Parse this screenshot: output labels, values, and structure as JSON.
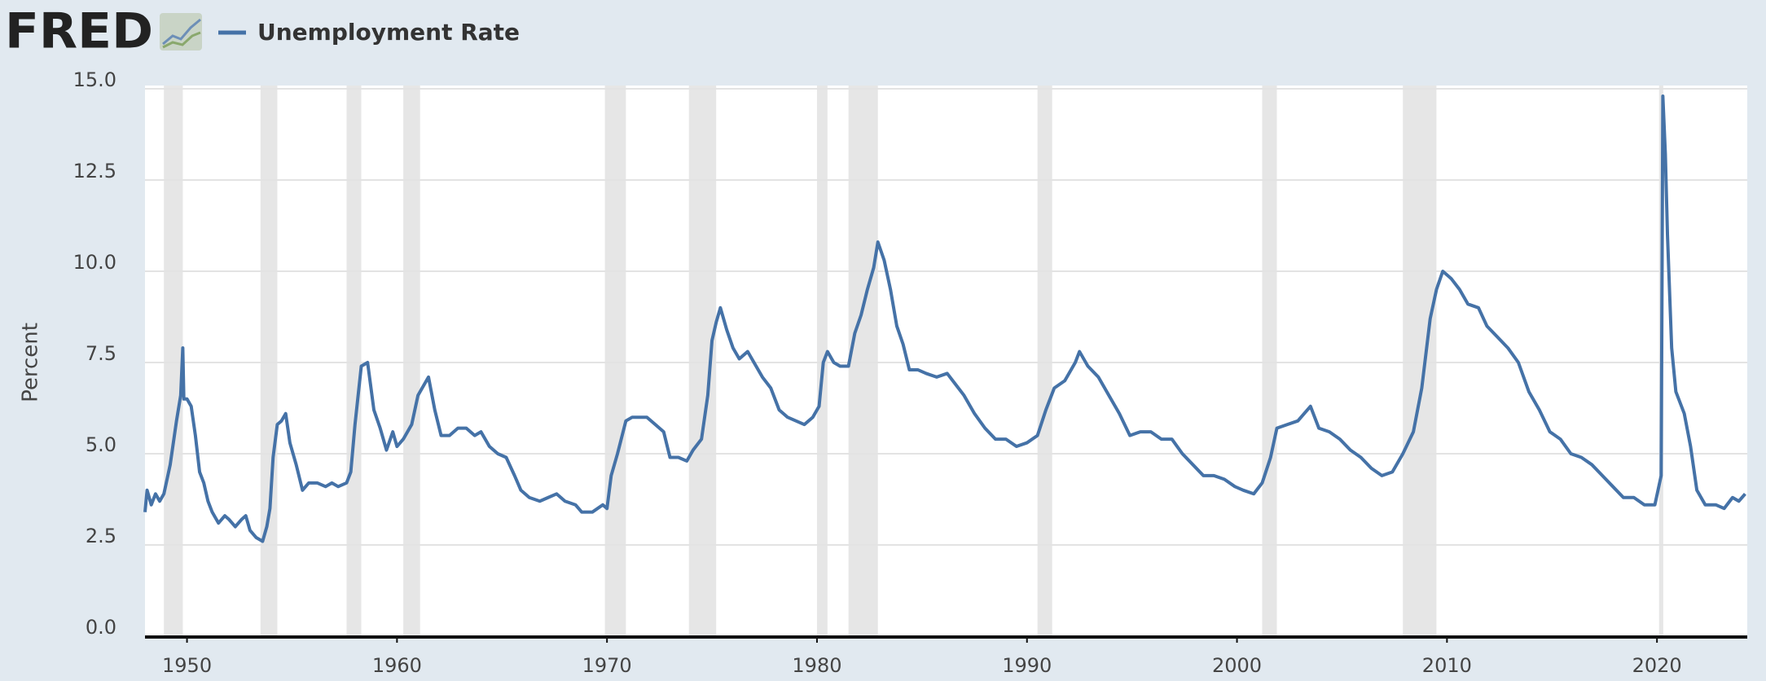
{
  "logo": "FRED",
  "chart_data": {
    "type": "line",
    "ylabel": "Percent",
    "series": [
      {
        "name": "Unemployment Rate",
        "color": "#4572a7",
        "x": [
          1948.0,
          1948.1,
          1948.3,
          1948.5,
          1948.7,
          1948.9,
          1949.2,
          1949.5,
          1949.7,
          1949.8,
          1949.85,
          1950.0,
          1950.2,
          1950.4,
          1950.6,
          1950.8,
          1951.0,
          1951.2,
          1951.5,
          1951.8,
          1952.0,
          1952.3,
          1952.6,
          1952.8,
          1953.0,
          1953.3,
          1953.6,
          1953.8,
          1953.95,
          1954.1,
          1954.3,
          1954.5,
          1954.7,
          1954.9,
          1955.2,
          1955.5,
          1955.8,
          1956.2,
          1956.6,
          1956.9,
          1957.2,
          1957.6,
          1957.8,
          1958.0,
          1958.3,
          1958.6,
          1958.9,
          1959.2,
          1959.5,
          1959.8,
          1960.0,
          1960.3,
          1960.7,
          1961.0,
          1961.3,
          1961.5,
          1961.8,
          1962.1,
          1962.5,
          1962.9,
          1963.3,
          1963.7,
          1964.0,
          1964.4,
          1964.8,
          1965.2,
          1965.6,
          1965.9,
          1966.3,
          1966.8,
          1967.2,
          1967.6,
          1968.0,
          1968.5,
          1968.8,
          1969.3,
          1969.8,
          1970.0,
          1970.2,
          1970.5,
          1970.9,
          1971.2,
          1971.6,
          1971.9,
          1972.3,
          1972.7,
          1973.0,
          1973.4,
          1973.8,
          1974.1,
          1974.5,
          1974.8,
          1975.0,
          1975.2,
          1975.4,
          1975.7,
          1976.0,
          1976.3,
          1976.7,
          1977.0,
          1977.4,
          1977.8,
          1978.2,
          1978.6,
          1979.0,
          1979.4,
          1979.8,
          1980.1,
          1980.3,
          1980.5,
          1980.8,
          1981.1,
          1981.5,
          1981.8,
          1982.1,
          1982.4,
          1982.7,
          1982.9,
          1983.2,
          1983.5,
          1983.8,
          1984.1,
          1984.4,
          1984.8,
          1985.2,
          1985.7,
          1986.2,
          1986.6,
          1987.0,
          1987.5,
          1988.0,
          1988.5,
          1989.0,
          1989.5,
          1990.0,
          1990.5,
          1990.9,
          1991.3,
          1991.8,
          1992.3,
          1992.5,
          1992.9,
          1993.4,
          1993.9,
          1994.4,
          1994.9,
          1995.4,
          1995.9,
          1996.4,
          1996.9,
          1997.4,
          1997.9,
          1998.4,
          1998.9,
          1999.4,
          1999.9,
          2000.3,
          2000.8,
          2001.2,
          2001.6,
          2001.9,
          2002.4,
          2002.9,
          2003.5,
          2003.9,
          2004.4,
          2004.9,
          2005.4,
          2005.9,
          2006.4,
          2006.9,
          2007.4,
          2007.9,
          2008.4,
          2008.8,
          2009.2,
          2009.5,
          2009.8,
          2010.2,
          2010.6,
          2011.0,
          2011.5,
          2011.9,
          2012.4,
          2012.9,
          2013.4,
          2013.9,
          2014.4,
          2014.9,
          2015.4,
          2015.9,
          2016.4,
          2016.9,
          2017.4,
          2017.9,
          2018.4,
          2018.9,
          2019.4,
          2019.9,
          2020.2,
          2020.28,
          2020.4,
          2020.5,
          2020.7,
          2020.9,
          2021.3,
          2021.6,
          2021.9,
          2022.3,
          2022.8,
          2023.2,
          2023.6,
          2023.9,
          2024.2
        ],
        "values": [
          3.4,
          4.0,
          3.6,
          3.9,
          3.7,
          3.9,
          4.7,
          5.9,
          6.6,
          7.9,
          6.5,
          6.5,
          6.3,
          5.5,
          4.5,
          4.2,
          3.7,
          3.4,
          3.1,
          3.3,
          3.2,
          3.0,
          3.2,
          3.3,
          2.9,
          2.7,
          2.6,
          3.0,
          3.5,
          4.9,
          5.8,
          5.9,
          6.1,
          5.3,
          4.7,
          4.0,
          4.2,
          4.2,
          4.1,
          4.2,
          4.1,
          4.2,
          4.5,
          5.8,
          7.4,
          7.5,
          6.2,
          5.7,
          5.1,
          5.6,
          5.2,
          5.4,
          5.8,
          6.6,
          6.9,
          7.1,
          6.2,
          5.5,
          5.5,
          5.7,
          5.7,
          5.5,
          5.6,
          5.2,
          5.0,
          4.9,
          4.4,
          4.0,
          3.8,
          3.7,
          3.8,
          3.9,
          3.7,
          3.6,
          3.4,
          3.4,
          3.6,
          3.5,
          4.4,
          5.0,
          5.9,
          6.0,
          6.0,
          6.0,
          5.8,
          5.6,
          4.9,
          4.9,
          4.8,
          5.1,
          5.4,
          6.6,
          8.1,
          8.6,
          9.0,
          8.4,
          7.9,
          7.6,
          7.8,
          7.5,
          7.1,
          6.8,
          6.2,
          6.0,
          5.9,
          5.8,
          6.0,
          6.3,
          7.5,
          7.8,
          7.5,
          7.4,
          7.4,
          8.3,
          8.8,
          9.5,
          10.1,
          10.8,
          10.3,
          9.5,
          8.5,
          8.0,
          7.3,
          7.3,
          7.2,
          7.1,
          7.2,
          6.9,
          6.6,
          6.1,
          5.7,
          5.4,
          5.4,
          5.2,
          5.3,
          5.5,
          6.2,
          6.8,
          7.0,
          7.5,
          7.8,
          7.4,
          7.1,
          6.6,
          6.1,
          5.5,
          5.6,
          5.6,
          5.4,
          5.4,
          5.0,
          4.7,
          4.4,
          4.4,
          4.3,
          4.1,
          4.0,
          3.9,
          4.2,
          4.9,
          5.7,
          5.8,
          5.9,
          6.3,
          5.7,
          5.6,
          5.4,
          5.1,
          4.9,
          4.6,
          4.4,
          4.5,
          5.0,
          5.6,
          6.8,
          8.7,
          9.5,
          10.0,
          9.8,
          9.5,
          9.1,
          9.0,
          8.5,
          8.2,
          7.9,
          7.5,
          6.7,
          6.2,
          5.6,
          5.4,
          5.0,
          4.9,
          4.7,
          4.4,
          4.1,
          3.8,
          3.8,
          3.6,
          3.6,
          4.4,
          14.8,
          13.2,
          11.0,
          7.9,
          6.7,
          6.1,
          5.2,
          4.0,
          3.6,
          3.6,
          3.5,
          3.8,
          3.7,
          3.9
        ]
      }
    ],
    "recessions": [
      [
        1948.9,
        1949.8
      ],
      [
        1953.5,
        1954.3
      ],
      [
        1957.6,
        1958.3
      ],
      [
        1960.3,
        1961.1
      ],
      [
        1969.9,
        1970.9
      ],
      [
        1973.9,
        1975.2
      ],
      [
        1980.0,
        1980.5
      ],
      [
        1981.5,
        1982.9
      ],
      [
        1990.5,
        1991.2
      ],
      [
        2001.2,
        2001.9
      ],
      [
        2007.9,
        2009.5
      ],
      [
        2020.1,
        2020.3
      ]
    ],
    "recession_color": "#e6e6e6",
    "xlim": [
      1948.0,
      2024.3
    ],
    "xticks": [
      1950,
      1960,
      1970,
      1980,
      1990,
      2000,
      2010,
      2020
    ],
    "ylim": [
      0,
      15
    ],
    "yticks": [
      {
        "value": 0,
        "label": "0.0"
      },
      {
        "value": 2.5,
        "label": "2.5"
      },
      {
        "value": 5,
        "label": "5.0"
      },
      {
        "value": 7.5,
        "label": "7.5"
      },
      {
        "value": 10,
        "label": "10.0"
      },
      {
        "value": 12.5,
        "label": "12.5"
      },
      {
        "value": 15,
        "label": "15.0"
      }
    ],
    "grid": true
  }
}
